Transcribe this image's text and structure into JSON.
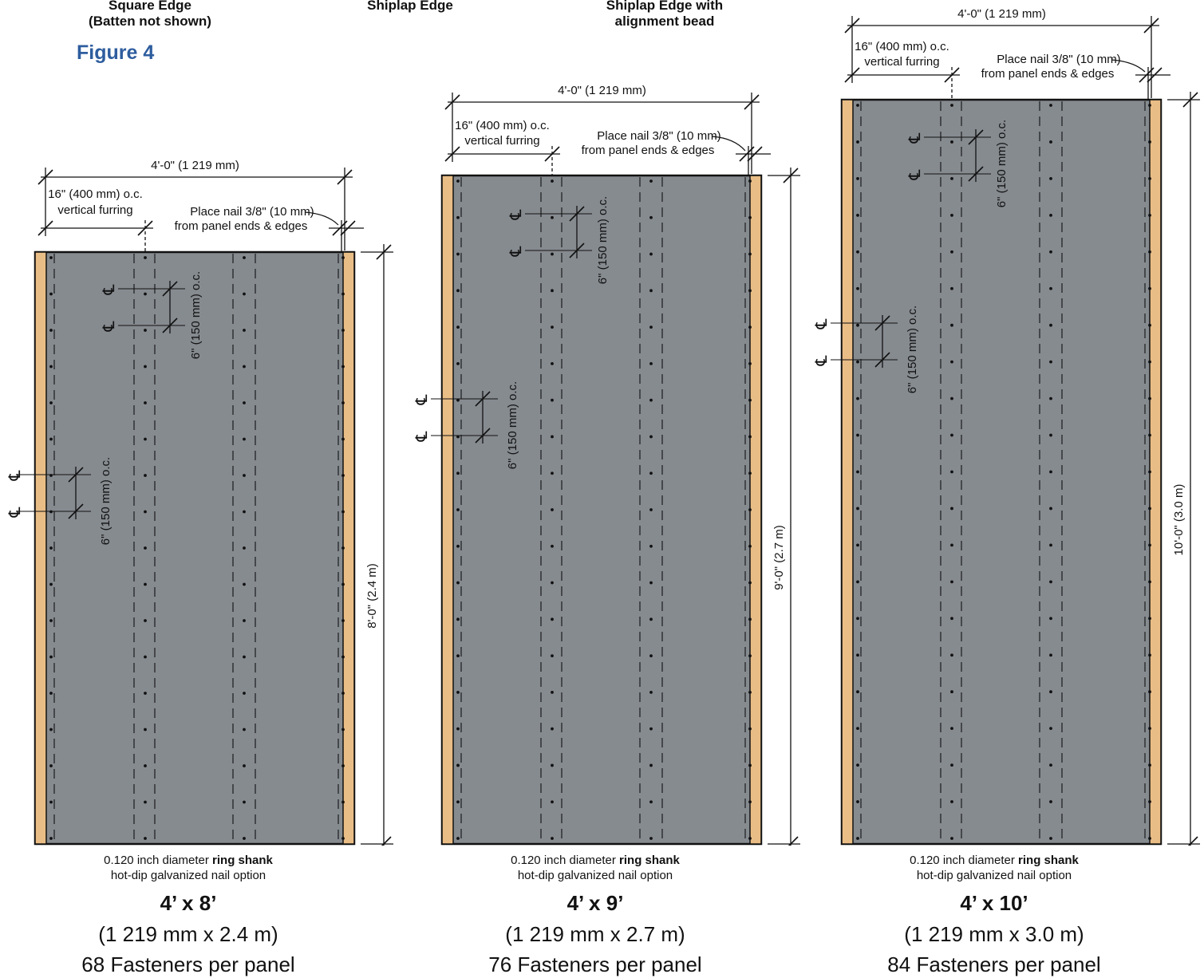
{
  "headers": [
    {
      "line1": "Square Edge",
      "line2": "(Batten not shown)"
    },
    {
      "line1": "Shiplap Edge",
      "line2": ""
    },
    {
      "line1": "Shiplap Edge with",
      "line2": "alignment bead"
    }
  ],
  "figure_label": "Figure 4",
  "colors": {
    "panel": "#868b90",
    "batten": "#e9bd86",
    "figure_label": "#2e5d9e"
  },
  "common": {
    "overall_width": "4'-0\" (1 219 mm)",
    "furring_line1": "16\" (400 mm) o.c.",
    "furring_line2": "vertical furring",
    "edge_line1": "Place nail 3/8\" (10 mm)",
    "edge_line2": "from panel ends & edges",
    "spacing": "6\" (150 mm) o.c.",
    "nail_line1_pre": "0.120 inch diameter ",
    "nail_line1_bold": "ring shank",
    "nail_line2": "hot-dip galvanized nail option",
    "centerline_symbol": "℄"
  },
  "panels": [
    {
      "height_label": "8'-0\" (2.4 m)",
      "size": "4’ x 8’",
      "metric": "(1 219 mm x 2.4 m)",
      "fasteners": "68 Fasteners per panel"
    },
    {
      "height_label": "9'-0\" (2.7 m)",
      "size": "4’ x 9’",
      "metric": "(1 219 mm x 2.7 m)",
      "fasteners": "76 Fasteners per panel"
    },
    {
      "height_label": "10'-0\" (3.0 m)",
      "size": "4’ x 10’",
      "metric": "(1 219 mm x 3.0 m)",
      "fasteners": "84 Fasteners per panel"
    }
  ]
}
